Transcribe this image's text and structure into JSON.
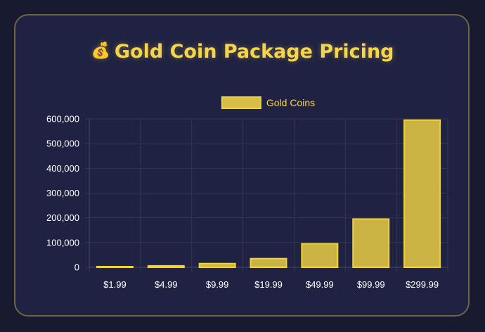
{
  "header": {
    "icon": "money-bag-icon",
    "icon_glyph": "💰",
    "title": "Gold Coin Package Pricing"
  },
  "chart_data": {
    "type": "bar",
    "title": "Gold Coin Package Pricing",
    "categories": [
      "$1.99",
      "$4.99",
      "$9.99",
      "$19.99",
      "$49.99",
      "$99.99",
      "$299.99"
    ],
    "series": [
      {
        "name": "Gold Coins",
        "values": [
          1000,
          6000,
          15000,
          35000,
          95000,
          195000,
          595000
        ]
      }
    ],
    "xlabel": "",
    "ylabel": "",
    "ylim": [
      0,
      600000
    ],
    "yticks": [
      0,
      100000,
      200000,
      300000,
      400000,
      500000,
      600000
    ],
    "ytick_labels": [
      "0",
      "100,000",
      "200,000",
      "300,000",
      "400,000",
      "500,000",
      "600,000"
    ],
    "grid": true,
    "legend_position": "top-center"
  },
  "colors": {
    "bar_fill": "#d6bd45",
    "bar_border": "#f2d23a",
    "grid": "#34374f",
    "title": "#f7d54a"
  }
}
